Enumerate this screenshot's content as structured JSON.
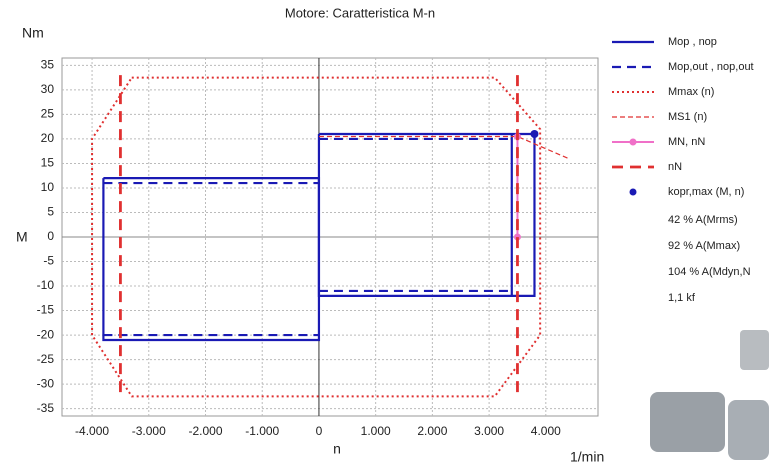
{
  "chart_data": {
    "type": "line",
    "title": "Motore: Caratteristica M-n",
    "y_unit": "Nm",
    "y_label": "M",
    "x_label": "n",
    "x_unit": "1/min",
    "xlim": [
      -4530,
      4920
    ],
    "ylim": [
      -36.5,
      36.5
    ],
    "xticks": [
      {
        "value": -4000,
        "label": "-4.000"
      },
      {
        "value": -3000,
        "label": "-3.000"
      },
      {
        "value": -2000,
        "label": "-2.000"
      },
      {
        "value": -1000,
        "label": "-1.000"
      },
      0,
      {
        "value": 1000,
        "label": "1.000"
      },
      {
        "value": 2000,
        "label": "2.000"
      },
      {
        "value": 3000,
        "label": "3.000"
      },
      {
        "value": 4000,
        "label": "4.000"
      }
    ],
    "yticks": [
      -35,
      -30,
      -25,
      -20,
      -15,
      -10,
      -5,
      0,
      5,
      10,
      15,
      20,
      25,
      30,
      35
    ],
    "grid": true,
    "series": [
      {
        "name": "Mop , nop",
        "color": "#1a1ab4",
        "style": "solid",
        "x": [
          -3800,
          0,
          0,
          -3800,
          -3800,
          null,
          0,
          3800,
          3800,
          0,
          0,
          null,
          3400,
          3400
        ],
        "values": [
          12,
          12,
          -21,
          -21,
          12,
          null,
          21,
          21,
          -12,
          -12,
          21,
          null,
          21,
          -12
        ]
      },
      {
        "name": "Mop,out , nop,out",
        "color": "#1a1ab4",
        "style": "dashed",
        "x": [
          -3800,
          0,
          null,
          -3800,
          0,
          null,
          0,
          3400,
          null,
          0,
          3400
        ],
        "values": [
          11,
          11,
          null,
          -20,
          -20,
          null,
          20,
          20,
          null,
          -11,
          -11
        ]
      },
      {
        "name": "Mmax (n)",
        "color": "#e03030",
        "style": "dotted",
        "x": [
          -3300,
          3100,
          3900,
          3900,
          3100,
          -3300,
          -4000,
          -4000,
          -3300
        ],
        "values": [
          32.5,
          32.5,
          22,
          -20,
          -32.5,
          -32.5,
          -20,
          20,
          32.5
        ]
      },
      {
        "name": "MS1 (n)",
        "color": "#e03030",
        "style": "thin-dashed",
        "x": [
          0,
          3500,
          4400
        ],
        "values": [
          20.5,
          20.5,
          16
        ]
      },
      {
        "name": "MN, nN",
        "color": "#f070c8",
        "style": "solid-marker",
        "x": [
          3500,
          3500
        ],
        "values": [
          20.5,
          0
        ]
      },
      {
        "name": "nN",
        "color": "#e03030",
        "style": "thick-dashed",
        "x": [
          -3500,
          -3500,
          null,
          3500,
          3500
        ],
        "values": [
          33,
          -33,
          null,
          33,
          -33
        ]
      },
      {
        "name": "kopr,max (M, n)",
        "color": "#1a1ab4",
        "style": "point",
        "x": [
          3800
        ],
        "values": [
          21
        ]
      }
    ],
    "legend_notes": [
      "42 % A(Mrms)",
      "92 % A(Mmax)",
      "104 % A(Mdyn,N",
      "1,1  kf"
    ]
  }
}
